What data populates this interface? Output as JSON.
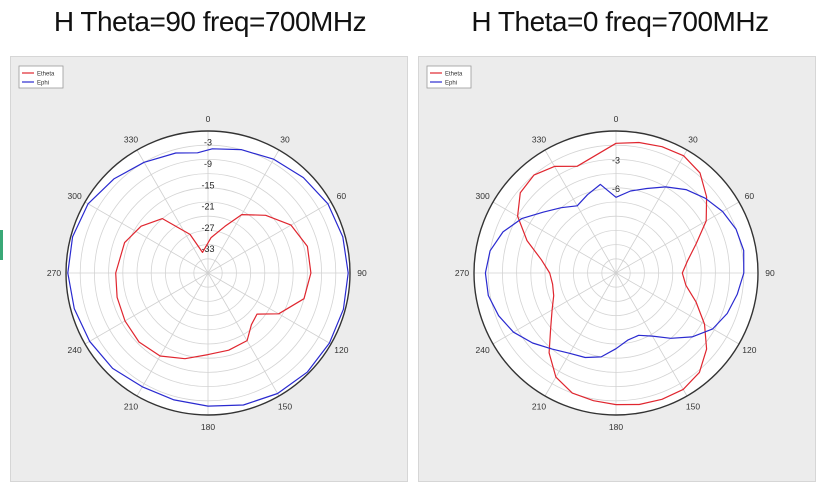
{
  "charts": [
    {
      "title": "H Theta=90 freq=700MHz",
      "legend": [
        {
          "name": "Etheta",
          "color": "#e0262f"
        },
        {
          "name": "Ephi",
          "color": "#2a2ad0"
        }
      ],
      "angle_labels": [
        "0",
        "30",
        "60",
        "90",
        "120",
        "150",
        "180",
        "210",
        "240",
        "270",
        "300",
        "330"
      ],
      "radial_labels": [
        "-3",
        "-9",
        "-15",
        "-21",
        "-27",
        "-33"
      ]
    },
    {
      "title": "H Theta=0 freq=700MHz",
      "legend": [
        {
          "name": "Etheta",
          "color": "#e0262f"
        },
        {
          "name": "Ephi",
          "color": "#2a2ad0"
        }
      ],
      "angle_labels": [
        "0",
        "30",
        "60",
        "90",
        "120",
        "150",
        "180",
        "210",
        "240",
        "270",
        "300",
        "330"
      ],
      "radial_labels": [
        "-3",
        "-6"
      ]
    }
  ],
  "chart_data": [
    {
      "type": "polar-line",
      "title": "H Theta=90 freq=700MHz",
      "angle_unit": "deg",
      "angle_zero": "top",
      "angle_direction": "clockwise",
      "rlim_db": [
        -40,
        0
      ],
      "radial_ticks": [
        -3,
        -9,
        -15,
        -21,
        -27,
        -33
      ],
      "angle_ticks": [
        0,
        30,
        60,
        90,
        120,
        150,
        180,
        210,
        240,
        270,
        300,
        330
      ],
      "legend_position": "top-left",
      "grid": true,
      "series": [
        {
          "name": "Etheta",
          "color": "#e0262f",
          "points": [
            [
              345,
              -34
            ],
            [
              335,
              -28
            ],
            [
              320,
              -20
            ],
            [
              305,
              -17
            ],
            [
              290,
              -15
            ],
            [
              270,
              -14
            ],
            [
              255,
              -13.5
            ],
            [
              240,
              -13
            ],
            [
              225,
              -12.5
            ],
            [
              210,
              -13
            ],
            [
              195,
              -15
            ],
            [
              180,
              -17
            ],
            [
              165,
              -17.5
            ],
            [
              150,
              -18
            ],
            [
              140,
              -21
            ],
            [
              130,
              -22
            ],
            [
              120,
              -17
            ],
            [
              105,
              -12
            ],
            [
              90,
              -11
            ],
            [
              75,
              -11
            ],
            [
              60,
              -13
            ],
            [
              45,
              -17
            ],
            [
              30,
              -21
            ],
            [
              20,
              -26
            ],
            [
              5,
              -30
            ]
          ]
        },
        {
          "name": "Ephi",
          "color": "#2a2ad0",
          "points": [
            [
              355,
              -6
            ],
            [
              345,
              -5
            ],
            [
              330,
              -4
            ],
            [
              315,
              -2.5
            ],
            [
              300,
              -1
            ],
            [
              285,
              -0.5
            ],
            [
              270,
              -0.5
            ],
            [
              255,
              -1
            ],
            [
              240,
              -1.5
            ],
            [
              225,
              -2
            ],
            [
              210,
              -3
            ],
            [
              195,
              -3
            ],
            [
              180,
              -2.5
            ],
            [
              165,
              -1.5
            ],
            [
              150,
              -0.8
            ],
            [
              135,
              -0.5
            ],
            [
              120,
              -0.5
            ],
            [
              105,
              -0.5
            ],
            [
              90,
              -0.5
            ],
            [
              75,
              -0.7
            ],
            [
              60,
              -1
            ],
            [
              45,
              -2
            ],
            [
              30,
              -3
            ],
            [
              15,
              -4
            ],
            [
              2,
              -5
            ]
          ]
        }
      ]
    },
    {
      "type": "polar-line",
      "title": "H Theta=0 freq=700MHz",
      "angle_unit": "deg",
      "angle_zero": "top",
      "angle_direction": "clockwise",
      "rlim_db": [
        -15,
        0
      ],
      "radial_ticks": [
        -3,
        -6
      ],
      "angle_ticks": [
        0,
        30,
        60,
        90,
        120,
        150,
        180,
        210,
        240,
        270,
        300,
        330
      ],
      "legend_position": "top-left",
      "grid": true,
      "series": [
        {
          "name": "Etheta",
          "color": "#e0262f",
          "points": [
            [
              0,
              -1.3
            ],
            [
              10,
              -1
            ],
            [
              20,
              -0.8
            ],
            [
              30,
              -0.7
            ],
            [
              40,
              -1.2
            ],
            [
              50,
              -2.5
            ],
            [
              60,
              -4
            ],
            [
              70,
              -6
            ],
            [
              80,
              -7.3
            ],
            [
              90,
              -8
            ],
            [
              100,
              -7.5
            ],
            [
              110,
              -6
            ],
            [
              120,
              -4.2
            ],
            [
              130,
              -2.5
            ],
            [
              140,
              -1.3
            ],
            [
              150,
              -0.8
            ],
            [
              160,
              -0.8
            ],
            [
              170,
              -0.9
            ],
            [
              180,
              -1.1
            ],
            [
              190,
              -1.3
            ],
            [
              200,
              -1.5
            ],
            [
              210,
              -2.3
            ],
            [
              220,
              -4
            ],
            [
              230,
              -6
            ],
            [
              240,
              -7.2
            ],
            [
              250,
              -8
            ],
            [
              260,
              -8.2
            ],
            [
              270,
              -8
            ],
            [
              280,
              -7
            ],
            [
              290,
              -5
            ],
            [
              300,
              -3
            ],
            [
              310,
              -1.8
            ],
            [
              320,
              -1.5
            ],
            [
              330,
              -2
            ],
            [
              340,
              -3
            ]
          ]
        },
        {
          "name": "Ephi",
          "color": "#2a2ad0",
          "points": [
            [
              0,
              -7
            ],
            [
              10,
              -6.2
            ],
            [
              20,
              -5.5
            ],
            [
              30,
              -4.5
            ],
            [
              40,
              -3.5
            ],
            [
              50,
              -2.7
            ],
            [
              60,
              -2
            ],
            [
              70,
              -1.5
            ],
            [
              80,
              -1.3
            ],
            [
              90,
              -1.5
            ],
            [
              100,
              -2
            ],
            [
              110,
              -2.5
            ],
            [
              120,
              -3.2
            ],
            [
              130,
              -4.5
            ],
            [
              140,
              -6
            ],
            [
              150,
              -7.3
            ],
            [
              160,
              -8
            ],
            [
              170,
              -7.8
            ],
            [
              180,
              -7
            ],
            [
              190,
              -6
            ],
            [
              200,
              -5.5
            ],
            [
              210,
              -5.2
            ],
            [
              220,
              -4.5
            ],
            [
              230,
              -3.5
            ],
            [
              240,
              -2.5
            ],
            [
              250,
              -1.8
            ],
            [
              260,
              -1.3
            ],
            [
              270,
              -1.2
            ],
            [
              280,
              -1.5
            ],
            [
              290,
              -2.3
            ],
            [
              300,
              -3.5
            ],
            [
              310,
              -5
            ],
            [
              320,
              -6
            ],
            [
              330,
              -6.8
            ],
            [
              340,
              -6.2
            ],
            [
              350,
              -5.5
            ]
          ]
        }
      ]
    }
  ]
}
